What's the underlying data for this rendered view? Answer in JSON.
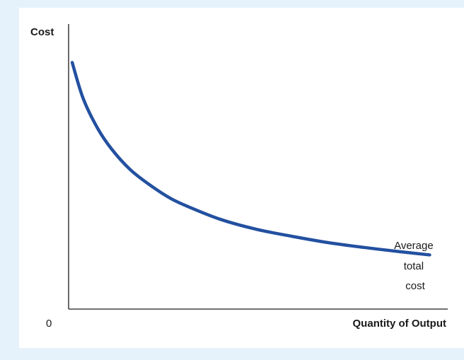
{
  "chart_data": {
    "type": "line",
    "title": "",
    "xlabel": "Quantity of Output",
    "ylabel": "Cost",
    "origin_label": "0",
    "grid": false,
    "legend": "none",
    "series": [
      {
        "name": "Average total cost",
        "label_lines": [
          "Average",
          "total",
          "cost"
        ],
        "color": "#2350a0",
        "x": [
          1,
          4,
          8,
          12,
          17,
          22,
          28,
          33,
          42,
          52,
          62,
          72,
          82,
          92,
          100
        ],
        "y": [
          86.5,
          74,
          63.5,
          56,
          49,
          44,
          39,
          36,
          31.5,
          28,
          25.5,
          23.3,
          21.6,
          20.1,
          19
        ]
      }
    ],
    "xlim": [
      0,
      105
    ],
    "ylim": [
      0,
      100
    ]
  },
  "colors": {
    "background": "#e6f2fb",
    "panel": "#ffffff",
    "axis": "#1a1a1a",
    "curve": "#2350a0"
  }
}
